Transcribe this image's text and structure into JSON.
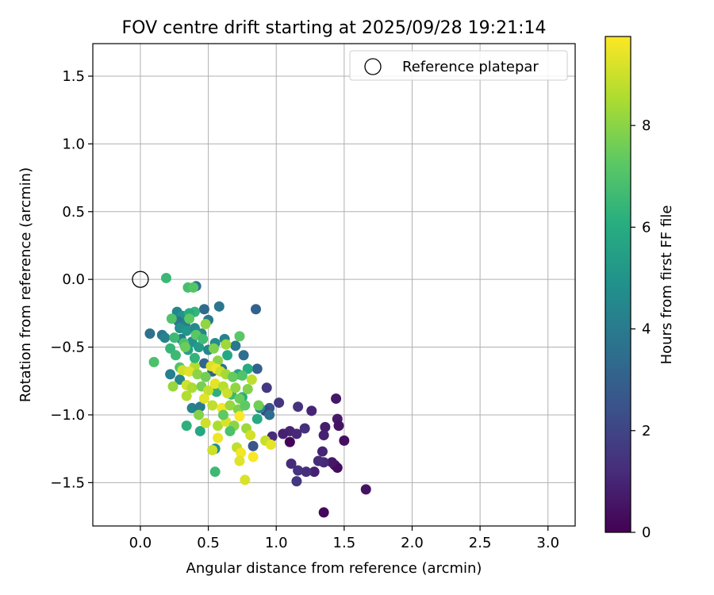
{
  "chart_data": {
    "type": "scatter",
    "title": "FOV centre drift starting at 2025/09/28 19:21:14",
    "xlabel": "Angular distance from reference (arcmin)",
    "ylabel": "Rotation from reference (arcmin)",
    "xlim": [
      -0.35,
      3.2
    ],
    "ylim": [
      -1.82,
      1.74
    ],
    "xticks": [
      0.0,
      0.5,
      1.0,
      1.5,
      2.0,
      2.5,
      3.0
    ],
    "xtick_labels": [
      "0.0",
      "0.5",
      "1.0",
      "1.5",
      "2.0",
      "2.5",
      "3.0"
    ],
    "yticks": [
      1.5,
      1.0,
      0.5,
      0.0,
      -0.5,
      -1.0,
      -1.5
    ],
    "ytick_labels": [
      "1.5",
      "1.0",
      "0.5",
      "0.0",
      "−0.5",
      "−1.0",
      "−1.5"
    ],
    "grid": true,
    "legend": {
      "position": "top-right",
      "label": "Reference platepar"
    },
    "reference_point": {
      "x": 0.0,
      "y": 0.0
    },
    "colorbar": {
      "label": "Hours from first FF file",
      "range": [
        0,
        9.75
      ],
      "ticks": [
        0,
        2,
        4,
        6,
        8
      ],
      "tick_labels": [
        "0",
        "2",
        "4",
        "6",
        "8"
      ],
      "colormap": "viridis"
    },
    "points": [
      {
        "x": 1.35,
        "y": -1.72,
        "c": 0.2
      },
      {
        "x": 1.66,
        "y": -1.55,
        "c": 0.5
      },
      {
        "x": 1.44,
        "y": -0.88,
        "c": 0.6
      },
      {
        "x": 1.45,
        "y": -1.03,
        "c": 0.7
      },
      {
        "x": 1.46,
        "y": -1.08,
        "c": 0.5
      },
      {
        "x": 1.5,
        "y": -1.19,
        "c": 0.4
      },
      {
        "x": 1.36,
        "y": -1.09,
        "c": 0.8
      },
      {
        "x": 1.35,
        "y": -1.15,
        "c": 0.9
      },
      {
        "x": 1.34,
        "y": -1.27,
        "c": 1.0
      },
      {
        "x": 1.43,
        "y": -1.37,
        "c": 0.4
      },
      {
        "x": 1.45,
        "y": -1.39,
        "c": 0.3
      },
      {
        "x": 1.41,
        "y": -1.35,
        "c": 0.6
      },
      {
        "x": 1.35,
        "y": -1.35,
        "c": 1.1
      },
      {
        "x": 1.31,
        "y": -1.34,
        "c": 1.2
      },
      {
        "x": 1.28,
        "y": -1.42,
        "c": 0.9
      },
      {
        "x": 1.22,
        "y": -1.42,
        "c": 1.3
      },
      {
        "x": 1.16,
        "y": -1.41,
        "c": 1.4
      },
      {
        "x": 1.15,
        "y": -1.49,
        "c": 1.5
      },
      {
        "x": 1.11,
        "y": -1.36,
        "c": 1.2
      },
      {
        "x": 1.1,
        "y": -1.2,
        "c": 0.1
      },
      {
        "x": 1.1,
        "y": -1.12,
        "c": 1.0
      },
      {
        "x": 1.05,
        "y": -1.14,
        "c": 0.9
      },
      {
        "x": 1.15,
        "y": -1.14,
        "c": 1.1
      },
      {
        "x": 1.21,
        "y": -1.1,
        "c": 1.3
      },
      {
        "x": 1.16,
        "y": -0.94,
        "c": 1.4
      },
      {
        "x": 1.26,
        "y": -0.97,
        "c": 1.0
      },
      {
        "x": 1.02,
        "y": -0.91,
        "c": 1.5
      },
      {
        "x": 0.95,
        "y": -0.95,
        "c": 2.5
      },
      {
        "x": 0.93,
        "y": -0.8,
        "c": 1.6
      },
      {
        "x": 0.97,
        "y": -1.16,
        "c": 1.2
      },
      {
        "x": 0.92,
        "y": -0.97,
        "c": 2.0
      },
      {
        "x": 0.85,
        "y": -0.22,
        "c": 3.0
      },
      {
        "x": 0.86,
        "y": -0.66,
        "c": 3.1
      },
      {
        "x": 0.76,
        "y": -0.56,
        "c": 3.5
      },
      {
        "x": 0.83,
        "y": -1.23,
        "c": 2.6
      },
      {
        "x": 0.58,
        "y": -0.2,
        "c": 3.8
      },
      {
        "x": 0.07,
        "y": -0.4,
        "c": 3.6
      },
      {
        "x": 0.16,
        "y": -0.41,
        "c": 3.9
      },
      {
        "x": 0.18,
        "y": -0.43,
        "c": 4.3
      },
      {
        "x": 0.27,
        "y": -0.24,
        "c": 4.5
      },
      {
        "x": 0.31,
        "y": -0.27,
        "c": 5.0
      },
      {
        "x": 0.41,
        "y": -0.05,
        "c": 3.7
      },
      {
        "x": 0.47,
        "y": -0.22,
        "c": 3.4
      },
      {
        "x": 0.5,
        "y": -0.3,
        "c": 4.0
      },
      {
        "x": 0.28,
        "y": -0.31,
        "c": 3.8
      },
      {
        "x": 0.33,
        "y": -0.33,
        "c": 4.2
      },
      {
        "x": 0.29,
        "y": -0.36,
        "c": 4.8
      },
      {
        "x": 0.34,
        "y": -0.38,
        "c": 5.1
      },
      {
        "x": 0.4,
        "y": -0.36,
        "c": 4.6
      },
      {
        "x": 0.45,
        "y": -0.4,
        "c": 4.4
      },
      {
        "x": 0.3,
        "y": -0.44,
        "c": 4.1
      },
      {
        "x": 0.38,
        "y": -0.46,
        "c": 4.9
      },
      {
        "x": 0.43,
        "y": -0.5,
        "c": 5.3
      },
      {
        "x": 0.5,
        "y": -0.52,
        "c": 4.5
      },
      {
        "x": 0.55,
        "y": -0.47,
        "c": 4.7
      },
      {
        "x": 0.35,
        "y": -0.52,
        "c": 5.5
      },
      {
        "x": 0.62,
        "y": -0.44,
        "c": 4.3
      },
      {
        "x": 0.7,
        "y": -0.49,
        "c": 3.9
      },
      {
        "x": 0.47,
        "y": -0.62,
        "c": 3.2
      },
      {
        "x": 0.6,
        "y": -0.66,
        "c": 3.6
      },
      {
        "x": 0.53,
        "y": -0.68,
        "c": 3.0
      },
      {
        "x": 0.64,
        "y": -0.56,
        "c": 5.8
      },
      {
        "x": 0.22,
        "y": -0.7,
        "c": 4.2
      },
      {
        "x": 0.29,
        "y": -0.74,
        "c": 4.5
      },
      {
        "x": 0.38,
        "y": -0.95,
        "c": 4.3
      },
      {
        "x": 0.44,
        "y": -0.94,
        "c": 4.0
      },
      {
        "x": 0.95,
        "y": -1.0,
        "c": 3.5
      },
      {
        "x": 0.88,
        "y": -0.95,
        "c": 4.4
      },
      {
        "x": 0.72,
        "y": -0.7,
        "c": 5.6
      },
      {
        "x": 0.79,
        "y": -0.66,
        "c": 6.0
      },
      {
        "x": 0.56,
        "y": -0.83,
        "c": 6.2
      },
      {
        "x": 0.67,
        "y": -0.85,
        "c": 6.5
      },
      {
        "x": 0.75,
        "y": -0.87,
        "c": 6.0
      },
      {
        "x": 0.86,
        "y": -1.03,
        "c": 5.9
      },
      {
        "x": 0.55,
        "y": -1.25,
        "c": 4.8
      },
      {
        "x": 0.55,
        "y": -1.42,
        "c": 6.6
      },
      {
        "x": 0.44,
        "y": -1.12,
        "c": 5.8
      },
      {
        "x": 0.34,
        "y": -1.08,
        "c": 6.2
      },
      {
        "x": 0.19,
        "y": 0.01,
        "c": 6.5
      },
      {
        "x": 0.35,
        "y": -0.06,
        "c": 6.8
      },
      {
        "x": 0.39,
        "y": -0.06,
        "c": 7.1
      },
      {
        "x": 0.4,
        "y": -0.24,
        "c": 6.4
      },
      {
        "x": 0.36,
        "y": -0.25,
        "c": 6.0
      },
      {
        "x": 0.23,
        "y": -0.29,
        "c": 7.0
      },
      {
        "x": 0.36,
        "y": -0.29,
        "c": 7.3
      },
      {
        "x": 0.48,
        "y": -0.33,
        "c": 8.1
      },
      {
        "x": 0.25,
        "y": -0.43,
        "c": 6.6
      },
      {
        "x": 0.32,
        "y": -0.47,
        "c": 6.9
      },
      {
        "x": 0.22,
        "y": -0.51,
        "c": 6.4
      },
      {
        "x": 0.33,
        "y": -0.5,
        "c": 7.5
      },
      {
        "x": 0.41,
        "y": -0.41,
        "c": 7.2
      },
      {
        "x": 0.46,
        "y": -0.44,
        "c": 6.7
      },
      {
        "x": 0.54,
        "y": -0.51,
        "c": 7.8
      },
      {
        "x": 0.57,
        "y": -0.6,
        "c": 8.0
      },
      {
        "x": 0.63,
        "y": -0.48,
        "c": 8.3
      },
      {
        "x": 0.73,
        "y": -0.42,
        "c": 7.2
      },
      {
        "x": 0.1,
        "y": -0.61,
        "c": 6.9
      },
      {
        "x": 0.29,
        "y": -0.65,
        "c": 7.0
      },
      {
        "x": 0.4,
        "y": -0.64,
        "c": 8.6
      },
      {
        "x": 0.31,
        "y": -0.67,
        "c": 9.0
      },
      {
        "x": 0.36,
        "y": -0.68,
        "c": 9.3
      },
      {
        "x": 0.42,
        "y": -0.7,
        "c": 8.0
      },
      {
        "x": 0.48,
        "y": -0.72,
        "c": 7.6
      },
      {
        "x": 0.52,
        "y": -0.64,
        "c": 9.2
      },
      {
        "x": 0.56,
        "y": -0.66,
        "c": 9.5
      },
      {
        "x": 0.59,
        "y": -0.68,
        "c": 9.0
      },
      {
        "x": 0.63,
        "y": -0.7,
        "c": 8.4
      },
      {
        "x": 0.68,
        "y": -0.72,
        "c": 7.4
      },
      {
        "x": 0.75,
        "y": -0.71,
        "c": 7.0
      },
      {
        "x": 0.82,
        "y": -0.74,
        "c": 8.8
      },
      {
        "x": 0.79,
        "y": -0.81,
        "c": 7.9
      },
      {
        "x": 0.24,
        "y": -0.79,
        "c": 8.2
      },
      {
        "x": 0.34,
        "y": -0.78,
        "c": 9.1
      },
      {
        "x": 0.38,
        "y": -0.8,
        "c": 8.5
      },
      {
        "x": 0.45,
        "y": -0.79,
        "c": 7.7
      },
      {
        "x": 0.5,
        "y": -0.82,
        "c": 8.9
      },
      {
        "x": 0.55,
        "y": -0.77,
        "c": 9.4
      },
      {
        "x": 0.61,
        "y": -0.79,
        "c": 8.7
      },
      {
        "x": 0.64,
        "y": -0.84,
        "c": 9.0
      },
      {
        "x": 0.7,
        "y": -0.8,
        "c": 8.1
      },
      {
        "x": 0.73,
        "y": -0.88,
        "c": 7.5
      },
      {
        "x": 0.34,
        "y": -0.86,
        "c": 8.6
      },
      {
        "x": 0.47,
        "y": -0.88,
        "c": 9.3
      },
      {
        "x": 0.53,
        "y": -0.93,
        "c": 8.8
      },
      {
        "x": 0.6,
        "y": -0.95,
        "c": 9.6
      },
      {
        "x": 0.66,
        "y": -0.93,
        "c": 8.2
      },
      {
        "x": 0.72,
        "y": -0.96,
        "c": 7.8
      },
      {
        "x": 0.77,
        "y": -0.93,
        "c": 7.3
      },
      {
        "x": 0.87,
        "y": -0.93,
        "c": 7.6
      },
      {
        "x": 0.43,
        "y": -1.0,
        "c": 7.9
      },
      {
        "x": 0.48,
        "y": -1.06,
        "c": 9.0
      },
      {
        "x": 0.57,
        "y": -1.08,
        "c": 8.5
      },
      {
        "x": 0.63,
        "y": -1.05,
        "c": 9.2
      },
      {
        "x": 0.69,
        "y": -1.08,
        "c": 8.0
      },
      {
        "x": 0.73,
        "y": -1.01,
        "c": 9.7
      },
      {
        "x": 0.78,
        "y": -1.1,
        "c": 8.3
      },
      {
        "x": 0.81,
        "y": -1.15,
        "c": 9.1
      },
      {
        "x": 0.92,
        "y": -1.19,
        "c": 8.9
      },
      {
        "x": 0.96,
        "y": -1.22,
        "c": 9.4
      },
      {
        "x": 0.57,
        "y": -1.17,
        "c": 9.5
      },
      {
        "x": 0.53,
        "y": -1.26,
        "c": 9.0
      },
      {
        "x": 0.71,
        "y": -1.24,
        "c": 8.8
      },
      {
        "x": 0.74,
        "y": -1.28,
        "c": 9.6
      },
      {
        "x": 0.73,
        "y": -1.34,
        "c": 9.3
      },
      {
        "x": 0.83,
        "y": -1.31,
        "c": 9.7
      },
      {
        "x": 0.77,
        "y": -1.48,
        "c": 9.2
      },
      {
        "x": 0.61,
        "y": -1.0,
        "c": 7.3
      },
      {
        "x": 0.66,
        "y": -1.12,
        "c": 6.9
      },
      {
        "x": 0.4,
        "y": -0.58,
        "c": 6.3
      },
      {
        "x": 0.26,
        "y": -0.56,
        "c": 6.6
      }
    ]
  }
}
